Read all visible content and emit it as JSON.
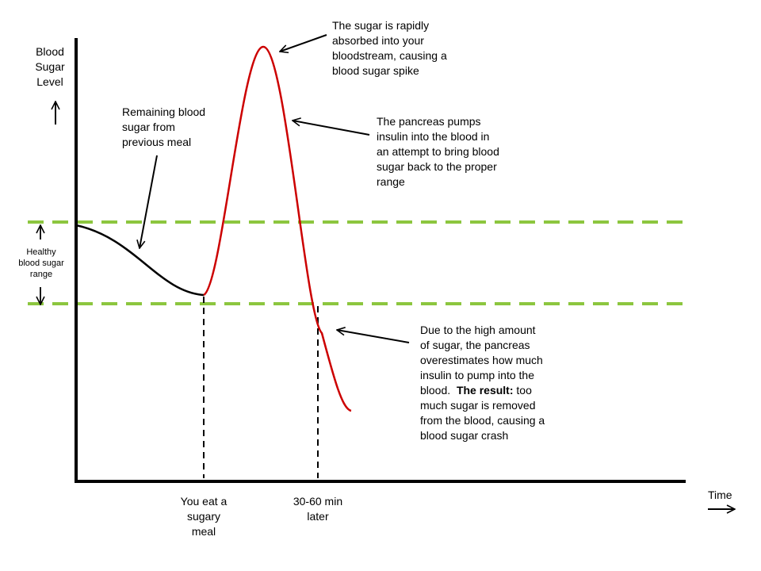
{
  "axes": {
    "y_label": [
      "Blood",
      "Sugar",
      "Level"
    ],
    "x_label": "Time"
  },
  "range_label": [
    "Healthy",
    "blood sugar",
    "range"
  ],
  "annotations": {
    "remaining": [
      "Remaining blood",
      "sugar from",
      "previous meal"
    ],
    "spike": [
      "The sugar is rapidly",
      "absorbed into your",
      "bloodstream, causing a",
      "blood sugar spike"
    ],
    "insulin": [
      "The pancreas pumps",
      "insulin into the blood in",
      "an attempt to bring blood",
      "sugar back to the proper",
      "range"
    ],
    "crash": {
      "line1": "Due to the high amount",
      "line2": "of sugar, the pancreas",
      "line3": "overestimates how much",
      "line4": "insulin to pump into the",
      "line5_prefix": "blood.  ",
      "line5_bold": "The result:",
      "line5_suffix": " too",
      "line6": "much sugar is removed",
      "line7": "from the blood, causing a",
      "line8": "blood sugar crash"
    }
  },
  "events": {
    "meal": [
      "You eat a",
      "sugary",
      "meal"
    ],
    "later": [
      "30-60 min",
      "later"
    ]
  },
  "colors": {
    "range_line": "#8cc63f",
    "curve_before": "#000000",
    "curve_after": "#cc0000"
  }
}
